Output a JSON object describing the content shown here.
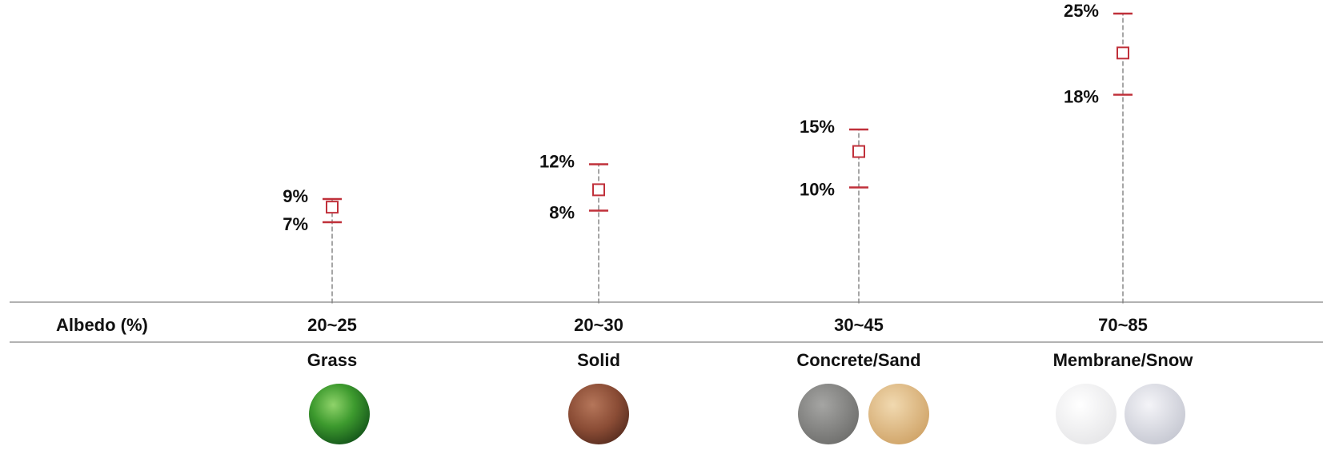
{
  "chart_data": {
    "type": "range",
    "row_label": "Albedo (%)",
    "categories": [
      "20~25",
      "20~30",
      "30~45",
      "70~85"
    ],
    "surfaces": [
      "Grass",
      "Solid",
      "Concrete/Sand",
      "Membrane/Snow"
    ],
    "low": {
      "values": [
        7,
        8,
        10,
        18
      ],
      "value_labels": [
        "7%",
        "8%",
        "10%",
        "18%"
      ]
    },
    "high": {
      "values": [
        9,
        12,
        15,
        25
      ],
      "value_labels": [
        "9%",
        "12%",
        "15%",
        "25%"
      ]
    },
    "mid": {
      "values": [
        8.3,
        9.8,
        13.1,
        21.6
      ]
    },
    "color": "#c0303a",
    "ylim": [
      0,
      25
    ]
  }
}
